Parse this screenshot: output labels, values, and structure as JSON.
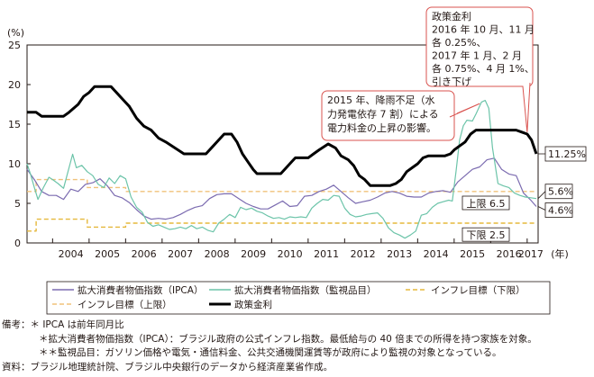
{
  "chart_data": {
    "type": "line",
    "y_unit": "(%)",
    "ylim": [
      0,
      25
    ],
    "yticks": [
      0,
      5,
      10,
      15,
      20,
      25
    ],
    "xlim": [
      2003.3,
      2017.3
    ],
    "x_tick_labels": [
      {
        "x": 2004,
        "label": "2004"
      },
      {
        "x": 2005,
        "label": "2005"
      },
      {
        "x": 2006,
        "label": "2006"
      },
      {
        "x": 2007,
        "label": "2007"
      },
      {
        "x": 2008,
        "label": "2008"
      },
      {
        "x": 2009,
        "label": "2009"
      },
      {
        "x": 2010,
        "label": "2010"
      },
      {
        "x": 2011,
        "label": "2011"
      },
      {
        "x": 2012,
        "label": "2012"
      },
      {
        "x": 2013,
        "label": "2013"
      },
      {
        "x": 2014,
        "label": "2014"
      },
      {
        "x": 2015,
        "label": "2015"
      },
      {
        "x": 2016,
        "label": "2016"
      },
      {
        "x": 2017.1,
        "label": "2017"
      }
    ],
    "x_unit": "(年)",
    "grid": false,
    "series": [
      {
        "name": "拡大消費者物価指数（IPCA）",
        "color": "#7b6bb0",
        "points": [
          [
            2003.3,
            9.3
          ],
          [
            2003.5,
            8.0
          ],
          [
            2003.7,
            6.5
          ],
          [
            2003.9,
            6.0
          ],
          [
            2004.1,
            6.0
          ],
          [
            2004.3,
            5.5
          ],
          [
            2004.5,
            6.8
          ],
          [
            2004.7,
            6.5
          ],
          [
            2004.9,
            7.4
          ],
          [
            2005.1,
            7.6
          ],
          [
            2005.3,
            8.1
          ],
          [
            2005.5,
            7.2
          ],
          [
            2005.7,
            6.0
          ],
          [
            2005.9,
            5.7
          ],
          [
            2006.1,
            5.1
          ],
          [
            2006.3,
            4.2
          ],
          [
            2006.5,
            3.4
          ],
          [
            2006.7,
            3.0
          ],
          [
            2006.9,
            3.1
          ],
          [
            2007.1,
            3.0
          ],
          [
            2007.3,
            3.2
          ],
          [
            2007.5,
            3.6
          ],
          [
            2007.7,
            4.1
          ],
          [
            2007.9,
            4.5
          ],
          [
            2008.1,
            4.7
          ],
          [
            2008.3,
            5.6
          ],
          [
            2008.5,
            6.1
          ],
          [
            2008.7,
            6.2
          ],
          [
            2008.9,
            6.2
          ],
          [
            2009.1,
            5.6
          ],
          [
            2009.3,
            5.0
          ],
          [
            2009.5,
            4.6
          ],
          [
            2009.7,
            4.3
          ],
          [
            2009.9,
            4.3
          ],
          [
            2010.1,
            4.8
          ],
          [
            2010.3,
            5.3
          ],
          [
            2010.5,
            4.6
          ],
          [
            2010.7,
            4.7
          ],
          [
            2010.9,
            5.9
          ],
          [
            2011.1,
            6.0
          ],
          [
            2011.3,
            6.5
          ],
          [
            2011.5,
            6.8
          ],
          [
            2011.7,
            7.3
          ],
          [
            2011.9,
            6.5
          ],
          [
            2012.1,
            5.7
          ],
          [
            2012.3,
            5.0
          ],
          [
            2012.5,
            5.2
          ],
          [
            2012.7,
            5.4
          ],
          [
            2012.9,
            5.8
          ],
          [
            2013.1,
            6.3
          ],
          [
            2013.3,
            6.5
          ],
          [
            2013.5,
            6.3
          ],
          [
            2013.7,
            5.9
          ],
          [
            2013.9,
            5.8
          ],
          [
            2014.1,
            5.8
          ],
          [
            2014.3,
            6.3
          ],
          [
            2014.5,
            6.5
          ],
          [
            2014.7,
            6.6
          ],
          [
            2014.9,
            6.4
          ],
          [
            2015.1,
            7.7
          ],
          [
            2015.3,
            8.5
          ],
          [
            2015.5,
            9.3
          ],
          [
            2015.7,
            9.6
          ],
          [
            2015.9,
            10.5
          ],
          [
            2016.1,
            10.7
          ],
          [
            2016.3,
            9.3
          ],
          [
            2016.5,
            8.7
          ],
          [
            2016.7,
            8.5
          ],
          [
            2016.9,
            6.3
          ],
          [
            2017.1,
            5.4
          ],
          [
            2017.25,
            4.6
          ]
        ]
      },
      {
        "name": "拡大消費者物価指数（監視品目）",
        "color": "#6cc4a9",
        "points": [
          [
            2003.3,
            10.0
          ],
          [
            2003.4,
            8.6
          ],
          [
            2003.5,
            7.0
          ],
          [
            2003.6,
            5.5
          ],
          [
            2003.75,
            7.0
          ],
          [
            2003.9,
            8.3
          ],
          [
            2004.0,
            8.0
          ],
          [
            2004.15,
            7.5
          ],
          [
            2004.3,
            6.9
          ],
          [
            2004.45,
            9.5
          ],
          [
            2004.55,
            11.2
          ],
          [
            2004.65,
            9.5
          ],
          [
            2004.8,
            9.8
          ],
          [
            2004.95,
            9.0
          ],
          [
            2005.1,
            8.5
          ],
          [
            2005.25,
            7.4
          ],
          [
            2005.4,
            7.0
          ],
          [
            2005.55,
            8.2
          ],
          [
            2005.7,
            7.5
          ],
          [
            2005.85,
            8.5
          ],
          [
            2006.0,
            8.1
          ],
          [
            2006.15,
            5.8
          ],
          [
            2006.3,
            4.5
          ],
          [
            2006.45,
            3.9
          ],
          [
            2006.6,
            2.6
          ],
          [
            2006.75,
            2.1
          ],
          [
            2006.9,
            2.3
          ],
          [
            2007.05,
            2.0
          ],
          [
            2007.2,
            1.7
          ],
          [
            2007.35,
            1.8
          ],
          [
            2007.5,
            2.0
          ],
          [
            2007.65,
            1.8
          ],
          [
            2007.8,
            2.2
          ],
          [
            2007.95,
            1.8
          ],
          [
            2008.1,
            2.0
          ],
          [
            2008.25,
            1.6
          ],
          [
            2008.4,
            1.4
          ],
          [
            2008.55,
            2.5
          ],
          [
            2008.7,
            3.0
          ],
          [
            2008.85,
            3.6
          ],
          [
            2009.0,
            3.2
          ],
          [
            2009.15,
            4.5
          ],
          [
            2009.3,
            4.2
          ],
          [
            2009.45,
            4.4
          ],
          [
            2009.6,
            4.0
          ],
          [
            2009.75,
            3.8
          ],
          [
            2009.9,
            3.4
          ],
          [
            2010.05,
            3.1
          ],
          [
            2010.2,
            3.2
          ],
          [
            2010.35,
            3.0
          ],
          [
            2010.5,
            3.3
          ],
          [
            2010.65,
            3.2
          ],
          [
            2010.8,
            3.3
          ],
          [
            2010.95,
            3.2
          ],
          [
            2011.1,
            4.4
          ],
          [
            2011.25,
            5.0
          ],
          [
            2011.4,
            5.5
          ],
          [
            2011.55,
            5.4
          ],
          [
            2011.7,
            6.0
          ],
          [
            2011.85,
            5.9
          ],
          [
            2012.0,
            4.4
          ],
          [
            2012.15,
            3.6
          ],
          [
            2012.3,
            3.3
          ],
          [
            2012.45,
            3.4
          ],
          [
            2012.6,
            3.6
          ],
          [
            2012.75,
            3.7
          ],
          [
            2012.9,
            3.8
          ],
          [
            2013.05,
            3.1
          ],
          [
            2013.2,
            1.9
          ],
          [
            2013.35,
            1.3
          ],
          [
            2013.5,
            1.0
          ],
          [
            2013.65,
            0.6
          ],
          [
            2013.8,
            1.0
          ],
          [
            2013.95,
            1.5
          ],
          [
            2014.1,
            3.5
          ],
          [
            2014.25,
            3.7
          ],
          [
            2014.4,
            4.5
          ],
          [
            2014.55,
            5.0
          ],
          [
            2014.7,
            5.2
          ],
          [
            2014.85,
            5.4
          ],
          [
            2014.95,
            5.3
          ],
          [
            2015.05,
            9.0
          ],
          [
            2015.15,
            13.0
          ],
          [
            2015.25,
            14.8
          ],
          [
            2015.35,
            15.5
          ],
          [
            2015.5,
            15.4
          ],
          [
            2015.6,
            16.3
          ],
          [
            2015.75,
            17.8
          ],
          [
            2015.85,
            18.0
          ],
          [
            2015.95,
            17.0
          ],
          [
            2016.05,
            12.0
          ],
          [
            2016.2,
            7.5
          ],
          [
            2016.35,
            7.2
          ],
          [
            2016.5,
            7.0
          ],
          [
            2016.65,
            6.3
          ],
          [
            2016.8,
            6.0
          ],
          [
            2016.95,
            5.8
          ],
          [
            2017.1,
            5.7
          ],
          [
            2017.25,
            5.6
          ]
        ]
      },
      {
        "name": "インフレ目標（下限）",
        "color": "#e5b83c",
        "points": [
          [
            2003.3,
            1.5
          ],
          [
            2003.55,
            1.5
          ],
          [
            2003.55,
            3.0
          ],
          [
            2004.0,
            3.0
          ],
          [
            2004.0,
            3.0
          ],
          [
            2004.95,
            3.0
          ],
          [
            2004.95,
            2.0
          ],
          [
            2006.0,
            2.0
          ],
          [
            2006.0,
            2.5
          ],
          [
            2017.25,
            2.5
          ]
        ]
      },
      {
        "name": "インフレ目標（上限）",
        "color": "#f0c27a",
        "points": [
          [
            2003.3,
            6.5
          ],
          [
            2003.55,
            6.5
          ],
          [
            2003.55,
            8.0
          ],
          [
            2004.0,
            8.0
          ],
          [
            2004.0,
            8.0
          ],
          [
            2004.95,
            8.0
          ],
          [
            2004.95,
            7.0
          ],
          [
            2006.0,
            7.0
          ],
          [
            2006.0,
            6.5
          ],
          [
            2017.25,
            6.5
          ]
        ]
      },
      {
        "name": "政策金利",
        "color": "#000000",
        "points": [
          [
            2003.3,
            16.5
          ],
          [
            2003.55,
            16.5
          ],
          [
            2003.7,
            16.0
          ],
          [
            2004.3,
            16.0
          ],
          [
            2004.45,
            16.5
          ],
          [
            2004.7,
            17.5
          ],
          [
            2004.85,
            18.5
          ],
          [
            2005.0,
            19.0
          ],
          [
            2005.15,
            19.75
          ],
          [
            2005.6,
            19.75
          ],
          [
            2005.75,
            19.0
          ],
          [
            2005.95,
            18.0
          ],
          [
            2006.1,
            17.25
          ],
          [
            2006.3,
            15.75
          ],
          [
            2006.5,
            14.75
          ],
          [
            2006.7,
            14.25
          ],
          [
            2006.9,
            13.25
          ],
          [
            2007.1,
            12.75
          ],
          [
            2007.35,
            12.0
          ],
          [
            2007.6,
            11.25
          ],
          [
            2008.2,
            11.25
          ],
          [
            2008.4,
            12.25
          ],
          [
            2008.55,
            13.0
          ],
          [
            2008.7,
            13.75
          ],
          [
            2008.9,
            13.75
          ],
          [
            2009.05,
            12.75
          ],
          [
            2009.2,
            11.25
          ],
          [
            2009.35,
            10.25
          ],
          [
            2009.5,
            9.25
          ],
          [
            2009.6,
            8.75
          ],
          [
            2010.25,
            8.75
          ],
          [
            2010.4,
            9.5
          ],
          [
            2010.55,
            10.25
          ],
          [
            2010.65,
            10.75
          ],
          [
            2011.0,
            10.75
          ],
          [
            2011.15,
            11.25
          ],
          [
            2011.3,
            11.75
          ],
          [
            2011.55,
            12.5
          ],
          [
            2011.75,
            12.0
          ],
          [
            2011.9,
            11.0
          ],
          [
            2012.1,
            10.5
          ],
          [
            2012.25,
            9.75
          ],
          [
            2012.4,
            8.5
          ],
          [
            2012.55,
            8.0
          ],
          [
            2012.7,
            7.25
          ],
          [
            2013.25,
            7.25
          ],
          [
            2013.4,
            7.5
          ],
          [
            2013.55,
            8.0
          ],
          [
            2013.7,
            9.0
          ],
          [
            2013.85,
            9.5
          ],
          [
            2014.0,
            10.0
          ],
          [
            2014.15,
            10.75
          ],
          [
            2014.3,
            11.0
          ],
          [
            2014.75,
            11.0
          ],
          [
            2014.9,
            11.25
          ],
          [
            2015.0,
            11.75
          ],
          [
            2015.15,
            12.25
          ],
          [
            2015.3,
            12.75
          ],
          [
            2015.45,
            13.75
          ],
          [
            2015.6,
            14.25
          ],
          [
            2016.7,
            14.25
          ],
          [
            2016.85,
            14.0
          ],
          [
            2017.0,
            13.75
          ],
          [
            2017.12,
            13.0
          ],
          [
            2017.25,
            11.25
          ]
        ]
      }
    ],
    "end_labels": [
      {
        "text": "11.25%",
        "y": 11.25
      },
      {
        "text": "5.6%",
        "y": 5.6
      },
      {
        "text": "4.6%",
        "y": 4.6
      }
    ],
    "band_labels": [
      {
        "text": "上限 6.5",
        "y": 5.0
      },
      {
        "text": "下限 2.5",
        "y": 1.0
      }
    ],
    "annotations": [
      {
        "lines": [
          "政策金利",
          "2016 年 10 月、11 月",
          "各 0.25%、",
          "2017 年 1 月、2 月",
          "各 0.75%、4 月 1%、",
          "引き下げ"
        ]
      },
      {
        "lines": [
          "2015 年、降雨不足（水",
          "力発電依存 7 割）による",
          "電力料金の上昇の影響。"
        ]
      }
    ],
    "legend_placement": "bottom",
    "legend": [
      {
        "label": "拡大消費者物価指数（IPCA）",
        "series": 0
      },
      {
        "label": "拡大消費者物価指数（監視品目）",
        "series": 1
      },
      {
        "label": "インフレ目標（下限）",
        "series": 2
      },
      {
        "label": "インフレ目標（上限）",
        "series": 3
      },
      {
        "label": "政策金利",
        "series": 4
      }
    ]
  },
  "notes": {
    "biko_lead": "備考：",
    "biko_1": "＊ IPCA は前年同月比",
    "biko_2": "＊拡大消費者物価指数（IPCA）：ブラジル政府の公式インフレ指数。最低給与の 40 倍までの所得を持つ家族を対象。",
    "biko_3": "＊＊監視品目：ガソリン価格や電気・通信料金、公共交通機関運賃等が政府により監視の対象となっている。",
    "source": "資料：ブラジル地理統計院、ブラジル中央銀行のデータから経済産業省作成。"
  }
}
